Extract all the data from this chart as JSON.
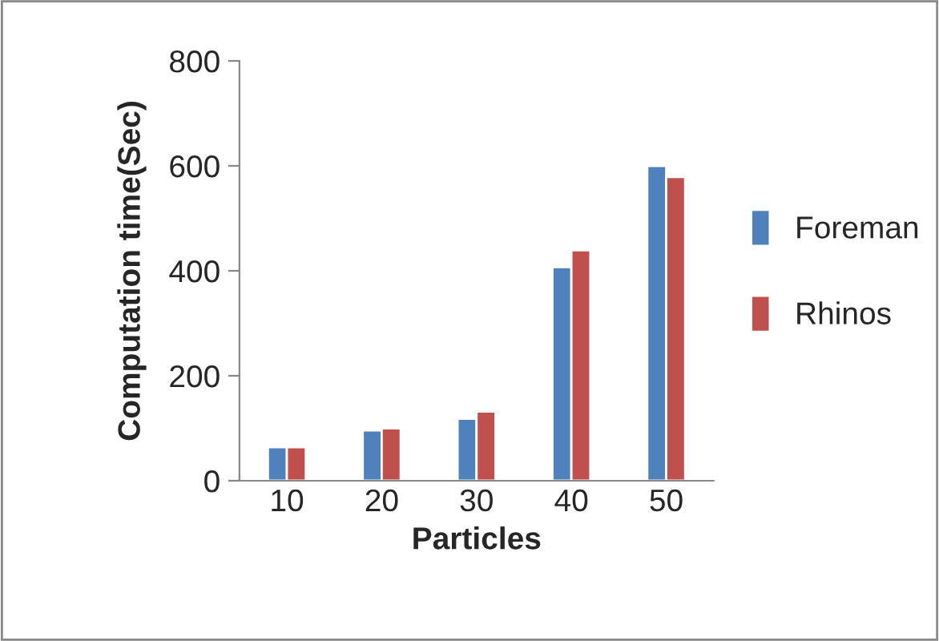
{
  "chart_data": {
    "type": "bar",
    "xlabel": "Particles",
    "ylabel": "Computation time(Sec)",
    "categories": [
      "10",
      "20",
      "30",
      "40",
      "50"
    ],
    "series": [
      {
        "name": "Foreman",
        "color": "#4f81bd",
        "values": [
          64,
          96,
          118,
          407,
          600
        ]
      },
      {
        "name": "Rhinos",
        "color": "#c0504d",
        "values": [
          64,
          100,
          132,
          439,
          579
        ]
      }
    ],
    "ylim": [
      0,
      800
    ],
    "yticks": [
      0,
      200,
      400,
      600,
      800
    ],
    "grid": false,
    "legend": "right"
  }
}
